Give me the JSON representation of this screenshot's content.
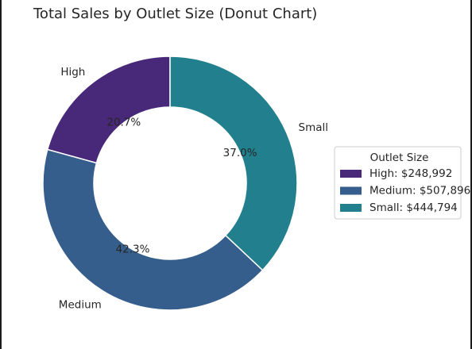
{
  "chart_data": {
    "type": "pie",
    "variant": "donut",
    "title": "Total Sales by Outlet Size (Donut Chart)",
    "categories": [
      "High",
      "Medium",
      "Small"
    ],
    "values": [
      248992,
      507896,
      444794
    ],
    "percent_labels": [
      "20.7%",
      "42.3%",
      "37.0%"
    ],
    "colors": [
      "#482878",
      "#355e8d",
      "#22808e"
    ],
    "legend": {
      "title": "Outlet Size",
      "placement": "center-right",
      "entries": [
        "High: $248,992",
        "Medium: $507,896",
        "Small: $444,794"
      ]
    }
  }
}
